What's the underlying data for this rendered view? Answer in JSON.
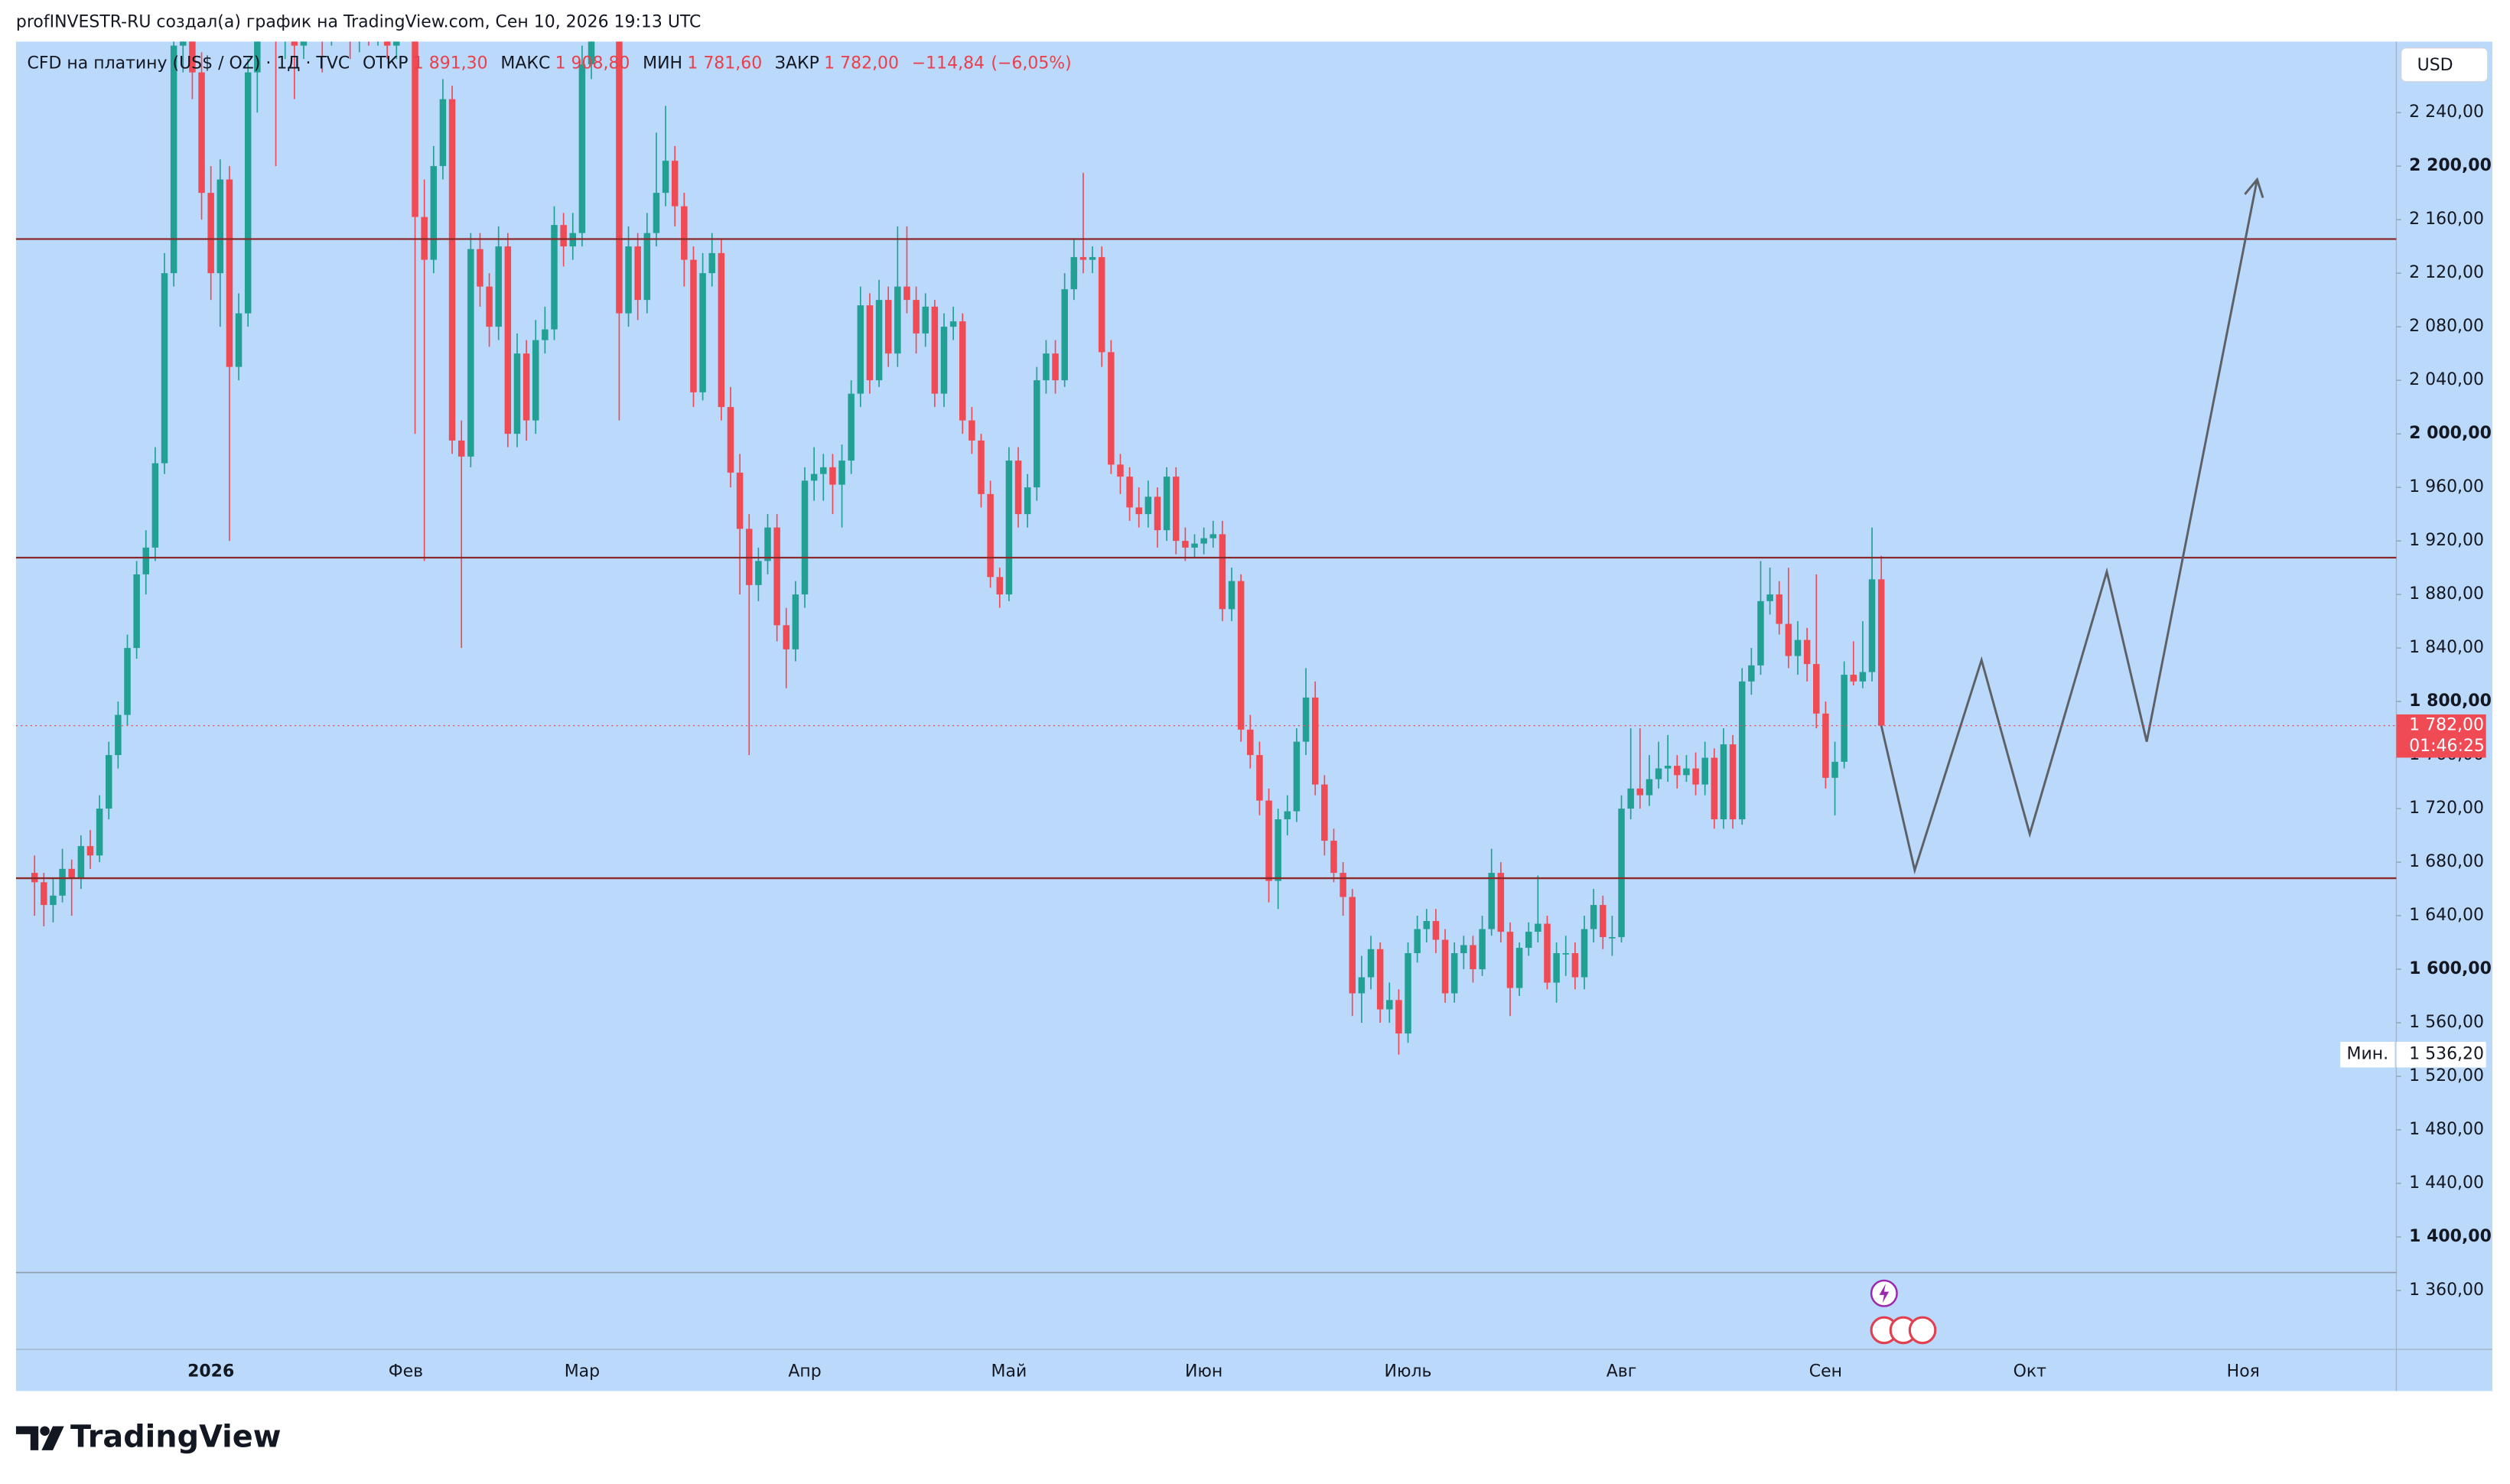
{
  "header": "profINVESTR-RU создал(а) график на TradingView.com, Сен 10, 2026 19:13 UTC",
  "brand": "TradingView",
  "chart_data": {
    "type": "candlestick",
    "title": "CFD на платину (US$ / OZ) · 1Д · TVC",
    "stats": [
      {
        "name": "ОТКР",
        "value": 1891.3,
        "label": "1 891,30"
      },
      {
        "name": "МАКС",
        "value": 1908.8,
        "label": "1 908,80"
      },
      {
        "name": "МИН",
        "value": 1781.6,
        "label": "1 781,60"
      },
      {
        "name": "ЗАКР",
        "value": 1782,
        "label": "1 782,00"
      }
    ],
    "change": {
      "value": -114.84,
      "label": "−114,84"
    },
    "change_pct": {
      "value": -6.05,
      "label": "(−6,05%)"
    },
    "currency": "USD",
    "colors": {
      "up": "#22a094",
      "down": "#f04a55",
      "level": "#8b2a2a",
      "forecast": "#5d6066"
    },
    "xlim": [
      -2,
      254.5
    ],
    "ylim": [
      1316,
      2293
    ],
    "yticks": [
      {
        "value": 1360,
        "label": "1 360,00"
      },
      {
        "value": 1400,
        "label": "1 400,00"
      },
      {
        "value": 1440,
        "label": "1 440,00"
      },
      {
        "value": 1480,
        "label": "1 480,00"
      },
      {
        "value": 1520,
        "label": "1 520,00"
      },
      {
        "value": 1560,
        "label": "1 560,00"
      },
      {
        "value": 1600,
        "label": "1 600,00"
      },
      {
        "value": 1640,
        "label": "1 640,00"
      },
      {
        "value": 1680,
        "label": "1 680,00"
      },
      {
        "value": 1720,
        "label": "1 720,00"
      },
      {
        "value": 1760,
        "label": "1 760,00"
      },
      {
        "value": 1800,
        "label": "1 800,00"
      },
      {
        "value": 1840,
        "label": "1 840,00"
      },
      {
        "value": 1880,
        "label": "1 880,00"
      },
      {
        "value": 1920,
        "label": "1 920,00"
      },
      {
        "value": 1960,
        "label": "1 960,00"
      },
      {
        "value": 2000,
        "label": "2 000,00"
      },
      {
        "value": 2040,
        "label": "2 040,00"
      },
      {
        "value": 2080,
        "label": "2 080,00"
      },
      {
        "value": 2120,
        "label": "2 120,00"
      },
      {
        "value": 2160,
        "label": "2 160,00"
      },
      {
        "value": 2200,
        "label": "2 200,00"
      },
      {
        "value": 2240,
        "label": "2 240,00"
      }
    ],
    "xticks": [
      {
        "value": 19,
        "label": "2026"
      },
      {
        "value": 40,
        "label": "Фев"
      },
      {
        "value": 59,
        "label": "Мар"
      },
      {
        "value": 83,
        "label": "Апр"
      },
      {
        "value": 105,
        "label": "Май"
      },
      {
        "value": 126,
        "label": "Июн"
      },
      {
        "value": 148,
        "label": "Июль"
      },
      {
        "value": 171,
        "label": "Авг"
      },
      {
        "value": 193,
        "label": "Сен"
      },
      {
        "value": 215,
        "label": "Окт"
      },
      {
        "value": 238,
        "label": "Ноя"
      }
    ],
    "last_price": {
      "value": 1782,
      "label": "1 782,00"
    },
    "countdown": "01:46:25",
    "min_marker": {
      "text": "Мин.",
      "value": 1536.2,
      "label": "1 536,20"
    },
    "levels": [
      2145.5,
      1907.5,
      1668
    ],
    "forecast": {
      "x": [
        199,
        202.6,
        209.8,
        215,
        223.3,
        227.6,
        239.5
      ],
      "y": [
        1782,
        1674,
        1831,
        1701,
        1897,
        1770,
        2190
      ]
    },
    "ohlc": [
      [
        1672,
        1685,
        1640,
        1665
      ],
      [
        1665,
        1672,
        1632,
        1648
      ],
      [
        1648,
        1668,
        1635,
        1655
      ],
      [
        1655,
        1690,
        1650,
        1675
      ],
      [
        1675,
        1682,
        1640,
        1668
      ],
      [
        1668,
        1700,
        1660,
        1692
      ],
      [
        1692,
        1704,
        1675,
        1685
      ],
      [
        1685,
        1730,
        1680,
        1720
      ],
      [
        1720,
        1770,
        1712,
        1760
      ],
      [
        1760,
        1800,
        1750,
        1790
      ],
      [
        1790,
        1850,
        1782,
        1840
      ],
      [
        1840,
        1905,
        1832,
        1895
      ],
      [
        1895,
        1928,
        1880,
        1915
      ],
      [
        1915,
        1990,
        1905,
        1978
      ],
      [
        1978,
        2135,
        1970,
        2120
      ],
      [
        2120,
        2320,
        2110,
        2290
      ],
      [
        2290,
        2340,
        2270,
        2310
      ],
      [
        2310,
        2325,
        2250,
        2270
      ],
      [
        2270,
        2285,
        2160,
        2180
      ],
      [
        2180,
        2200,
        2100,
        2120
      ],
      [
        2120,
        2205,
        2080,
        2190
      ],
      [
        2190,
        2200,
        1920,
        2050
      ],
      [
        2050,
        2105,
        2040,
        2090
      ],
      [
        2090,
        2280,
        2080,
        2270
      ],
      [
        2270,
        2330,
        2240,
        2310
      ],
      [
        2310,
        2350,
        2300,
        2330
      ],
      [
        2330,
        2345,
        2200,
        2300
      ],
      [
        2300,
        2335,
        2280,
        2320
      ],
      [
        2320,
        2330,
        2250,
        2290
      ],
      [
        2290,
        2355,
        2280,
        2340
      ],
      [
        2340,
        2350,
        2295,
        2310
      ],
      [
        2310,
        2320,
        2270,
        2300
      ],
      [
        2300,
        2345,
        2290,
        2330
      ],
      [
        2330,
        2340,
        2300,
        2310
      ],
      [
        2310,
        2320,
        2280,
        2295
      ],
      [
        2295,
        2335,
        2285,
        2320
      ],
      [
        2320,
        2330,
        2290,
        2300
      ],
      [
        2300,
        2325,
        2290,
        2310
      ],
      [
        2310,
        2320,
        2280,
        2290
      ],
      [
        2290,
        2315,
        2280,
        2300
      ],
      [
        2300,
        2340,
        2295,
        2320
      ],
      [
        2320,
        2330,
        2000,
        2162
      ],
      [
        2162,
        2190,
        1905,
        2130
      ],
      [
        2130,
        2215,
        2120,
        2200
      ],
      [
        2200,
        2265,
        2190,
        2250
      ],
      [
        2250,
        2260,
        1985,
        1995
      ],
      [
        1995,
        2010,
        1840,
        1983
      ],
      [
        1983,
        2150,
        1975,
        2138
      ],
      [
        2138,
        2150,
        2095,
        2110
      ],
      [
        2110,
        2120,
        2065,
        2080
      ],
      [
        2080,
        2155,
        2070,
        2140
      ],
      [
        2140,
        2150,
        1990,
        2000
      ],
      [
        2000,
        2075,
        1990,
        2060
      ],
      [
        2060,
        2070,
        1995,
        2010
      ],
      [
        2010,
        2085,
        2000,
        2070
      ],
      [
        2070,
        2095,
        2060,
        2078
      ],
      [
        2078,
        2170,
        2070,
        2156
      ],
      [
        2156,
        2165,
        2125,
        2140
      ],
      [
        2140,
        2165,
        2130,
        2150
      ],
      [
        2150,
        2290,
        2140,
        2276
      ],
      [
        2276,
        2325,
        2265,
        2310
      ],
      [
        2310,
        2345,
        2300,
        2330
      ],
      [
        2330,
        2340,
        2300,
        2320
      ],
      [
        2320,
        2330,
        2010,
        2090
      ],
      [
        2090,
        2155,
        2080,
        2140
      ],
      [
        2140,
        2150,
        2085,
        2100
      ],
      [
        2100,
        2165,
        2090,
        2150
      ],
      [
        2150,
        2225,
        2140,
        2180
      ],
      [
        2180,
        2245,
        2170,
        2204
      ],
      [
        2204,
        2215,
        2155,
        2170
      ],
      [
        2170,
        2180,
        2110,
        2130
      ],
      [
        2130,
        2140,
        2020,
        2031
      ],
      [
        2031,
        2135,
        2025,
        2120
      ],
      [
        2120,
        2150,
        2110,
        2135
      ],
      [
        2135,
        2145,
        2010,
        2020
      ],
      [
        2020,
        2035,
        1960,
        1971
      ],
      [
        1971,
        1985,
        1880,
        1929
      ],
      [
        1929,
        1940,
        1760,
        1887
      ],
      [
        1887,
        1915,
        1875,
        1905
      ],
      [
        1905,
        1940,
        1895,
        1930
      ],
      [
        1930,
        1940,
        1845,
        1857
      ],
      [
        1857,
        1870,
        1810,
        1839
      ],
      [
        1839,
        1890,
        1830,
        1880
      ],
      [
        1880,
        1975,
        1870,
        1965
      ],
      [
        1965,
        1990,
        1950,
        1970
      ],
      [
        1970,
        1985,
        1950,
        1975
      ],
      [
        1975,
        1985,
        1940,
        1962
      ],
      [
        1962,
        1992,
        1930,
        1980
      ],
      [
        1980,
        2040,
        1970,
        2030
      ],
      [
        2030,
        2110,
        2020,
        2096
      ],
      [
        2096,
        2105,
        2030,
        2040
      ],
      [
        2040,
        2115,
        2035,
        2100
      ],
      [
        2100,
        2110,
        2050,
        2060
      ],
      [
        2060,
        2155,
        2050,
        2110
      ],
      [
        2110,
        2155,
        2090,
        2100
      ],
      [
        2100,
        2110,
        2060,
        2075
      ],
      [
        2075,
        2105,
        2065,
        2095
      ],
      [
        2095,
        2100,
        2020,
        2030
      ],
      [
        2030,
        2090,
        2020,
        2080
      ],
      [
        2080,
        2095,
        2070,
        2084
      ],
      [
        2084,
        2090,
        2000,
        2010
      ],
      [
        2010,
        2020,
        1985,
        1995
      ],
      [
        1995,
        2000,
        1945,
        1955
      ],
      [
        1955,
        1965,
        1885,
        1893
      ],
      [
        1893,
        1900,
        1870,
        1880
      ],
      [
        1880,
        1990,
        1875,
        1980
      ],
      [
        1980,
        1990,
        1930,
        1940
      ],
      [
        1940,
        1970,
        1930,
        1960
      ],
      [
        1960,
        2050,
        1950,
        2040
      ],
      [
        2040,
        2070,
        2030,
        2060
      ],
      [
        2060,
        2070,
        2030,
        2040
      ],
      [
        2040,
        2120,
        2035,
        2108
      ],
      [
        2108,
        2145,
        2100,
        2132
      ],
      [
        2132,
        2195,
        2120,
        2130
      ],
      [
        2130,
        2140,
        2120,
        2132
      ],
      [
        2132,
        2140,
        2050,
        2061
      ],
      [
        2061,
        2070,
        1970,
        1977
      ],
      [
        1977,
        1985,
        1955,
        1968
      ],
      [
        1968,
        1975,
        1935,
        1945
      ],
      [
        1945,
        1960,
        1930,
        1940
      ],
      [
        1940,
        1965,
        1930,
        1953
      ],
      [
        1953,
        1960,
        1915,
        1928
      ],
      [
        1928,
        1975,
        1920,
        1968
      ],
      [
        1968,
        1975,
        1910,
        1920
      ],
      [
        1920,
        1930,
        1905,
        1915
      ],
      [
        1915,
        1925,
        1908,
        1918
      ],
      [
        1918,
        1930,
        1910,
        1922
      ],
      [
        1922,
        1935,
        1915,
        1925
      ],
      [
        1925,
        1935,
        1860,
        1869
      ],
      [
        1869,
        1900,
        1860,
        1890
      ],
      [
        1890,
        1895,
        1770,
        1779
      ],
      [
        1779,
        1790,
        1750,
        1760
      ],
      [
        1760,
        1770,
        1715,
        1726
      ],
      [
        1726,
        1735,
        1650,
        1666
      ],
      [
        1666,
        1720,
        1645,
        1712
      ],
      [
        1712,
        1730,
        1700,
        1718
      ],
      [
        1718,
        1780,
        1710,
        1770
      ],
      [
        1770,
        1825,
        1760,
        1803
      ],
      [
        1803,
        1815,
        1730,
        1738
      ],
      [
        1738,
        1745,
        1685,
        1696
      ],
      [
        1696,
        1705,
        1665,
        1672
      ],
      [
        1672,
        1680,
        1640,
        1654
      ],
      [
        1654,
        1660,
        1565,
        1582
      ],
      [
        1582,
        1610,
        1560,
        1594
      ],
      [
        1594,
        1625,
        1585,
        1615
      ],
      [
        1615,
        1620,
        1560,
        1570
      ],
      [
        1570,
        1590,
        1560,
        1577
      ],
      [
        1577,
        1585,
        1536.2,
        1552
      ],
      [
        1552,
        1620,
        1545,
        1612
      ],
      [
        1612,
        1640,
        1605,
        1630
      ],
      [
        1630,
        1645,
        1620,
        1636
      ],
      [
        1636,
        1645,
        1612,
        1622
      ],
      [
        1622,
        1630,
        1575,
        1582
      ],
      [
        1582,
        1620,
        1575,
        1612
      ],
      [
        1612,
        1625,
        1600,
        1618
      ],
      [
        1618,
        1625,
        1590,
        1600
      ],
      [
        1600,
        1640,
        1595,
        1630
      ],
      [
        1630,
        1690,
        1625,
        1672
      ],
      [
        1672,
        1680,
        1620,
        1628
      ],
      [
        1628,
        1635,
        1565,
        1586
      ],
      [
        1586,
        1620,
        1580,
        1616
      ],
      [
        1616,
        1635,
        1610,
        1628
      ],
      [
        1628,
        1670,
        1620,
        1634
      ],
      [
        1634,
        1640,
        1585,
        1590
      ],
      [
        1590,
        1620,
        1575,
        1612
      ],
      [
        1612,
        1625,
        1595,
        1612
      ],
      [
        1612,
        1620,
        1585,
        1594
      ],
      [
        1594,
        1640,
        1585,
        1630
      ],
      [
        1630,
        1660,
        1620,
        1648
      ],
      [
        1648,
        1655,
        1615,
        1624
      ],
      [
        1624,
        1640,
        1610,
        1624
      ],
      [
        1624,
        1730,
        1620,
        1720
      ],
      [
        1720,
        1780,
        1712,
        1735
      ],
      [
        1735,
        1780,
        1720,
        1730
      ],
      [
        1730,
        1760,
        1722,
        1742
      ],
      [
        1742,
        1770,
        1735,
        1750
      ],
      [
        1750,
        1775,
        1740,
        1752
      ],
      [
        1752,
        1760,
        1735,
        1745
      ],
      [
        1745,
        1760,
        1740,
        1750
      ],
      [
        1750,
        1762,
        1730,
        1738
      ],
      [
        1738,
        1770,
        1730,
        1758
      ],
      [
        1758,
        1765,
        1705,
        1712
      ],
      [
        1712,
        1780,
        1705,
        1768
      ],
      [
        1768,
        1775,
        1705,
        1712
      ],
      [
        1712,
        1825,
        1708,
        1815
      ],
      [
        1815,
        1840,
        1805,
        1827
      ],
      [
        1827,
        1905,
        1820,
        1875
      ],
      [
        1875,
        1900,
        1865,
        1880
      ],
      [
        1880,
        1890,
        1850,
        1858
      ],
      [
        1858,
        1900,
        1825,
        1834
      ],
      [
        1834,
        1860,
        1820,
        1846
      ],
      [
        1846,
        1855,
        1815,
        1828
      ],
      [
        1828,
        1895,
        1780,
        1791
      ],
      [
        1791,
        1800,
        1735,
        1743
      ],
      [
        1743,
        1770,
        1715,
        1755
      ],
      [
        1755,
        1830,
        1750,
        1820
      ],
      [
        1820,
        1845,
        1812,
        1815
      ],
      [
        1815,
        1860,
        1810,
        1822
      ],
      [
        1822,
        1930,
        1815,
        1891.3
      ],
      [
        1891.3,
        1908.8,
        1781.6,
        1782
      ]
    ]
  }
}
